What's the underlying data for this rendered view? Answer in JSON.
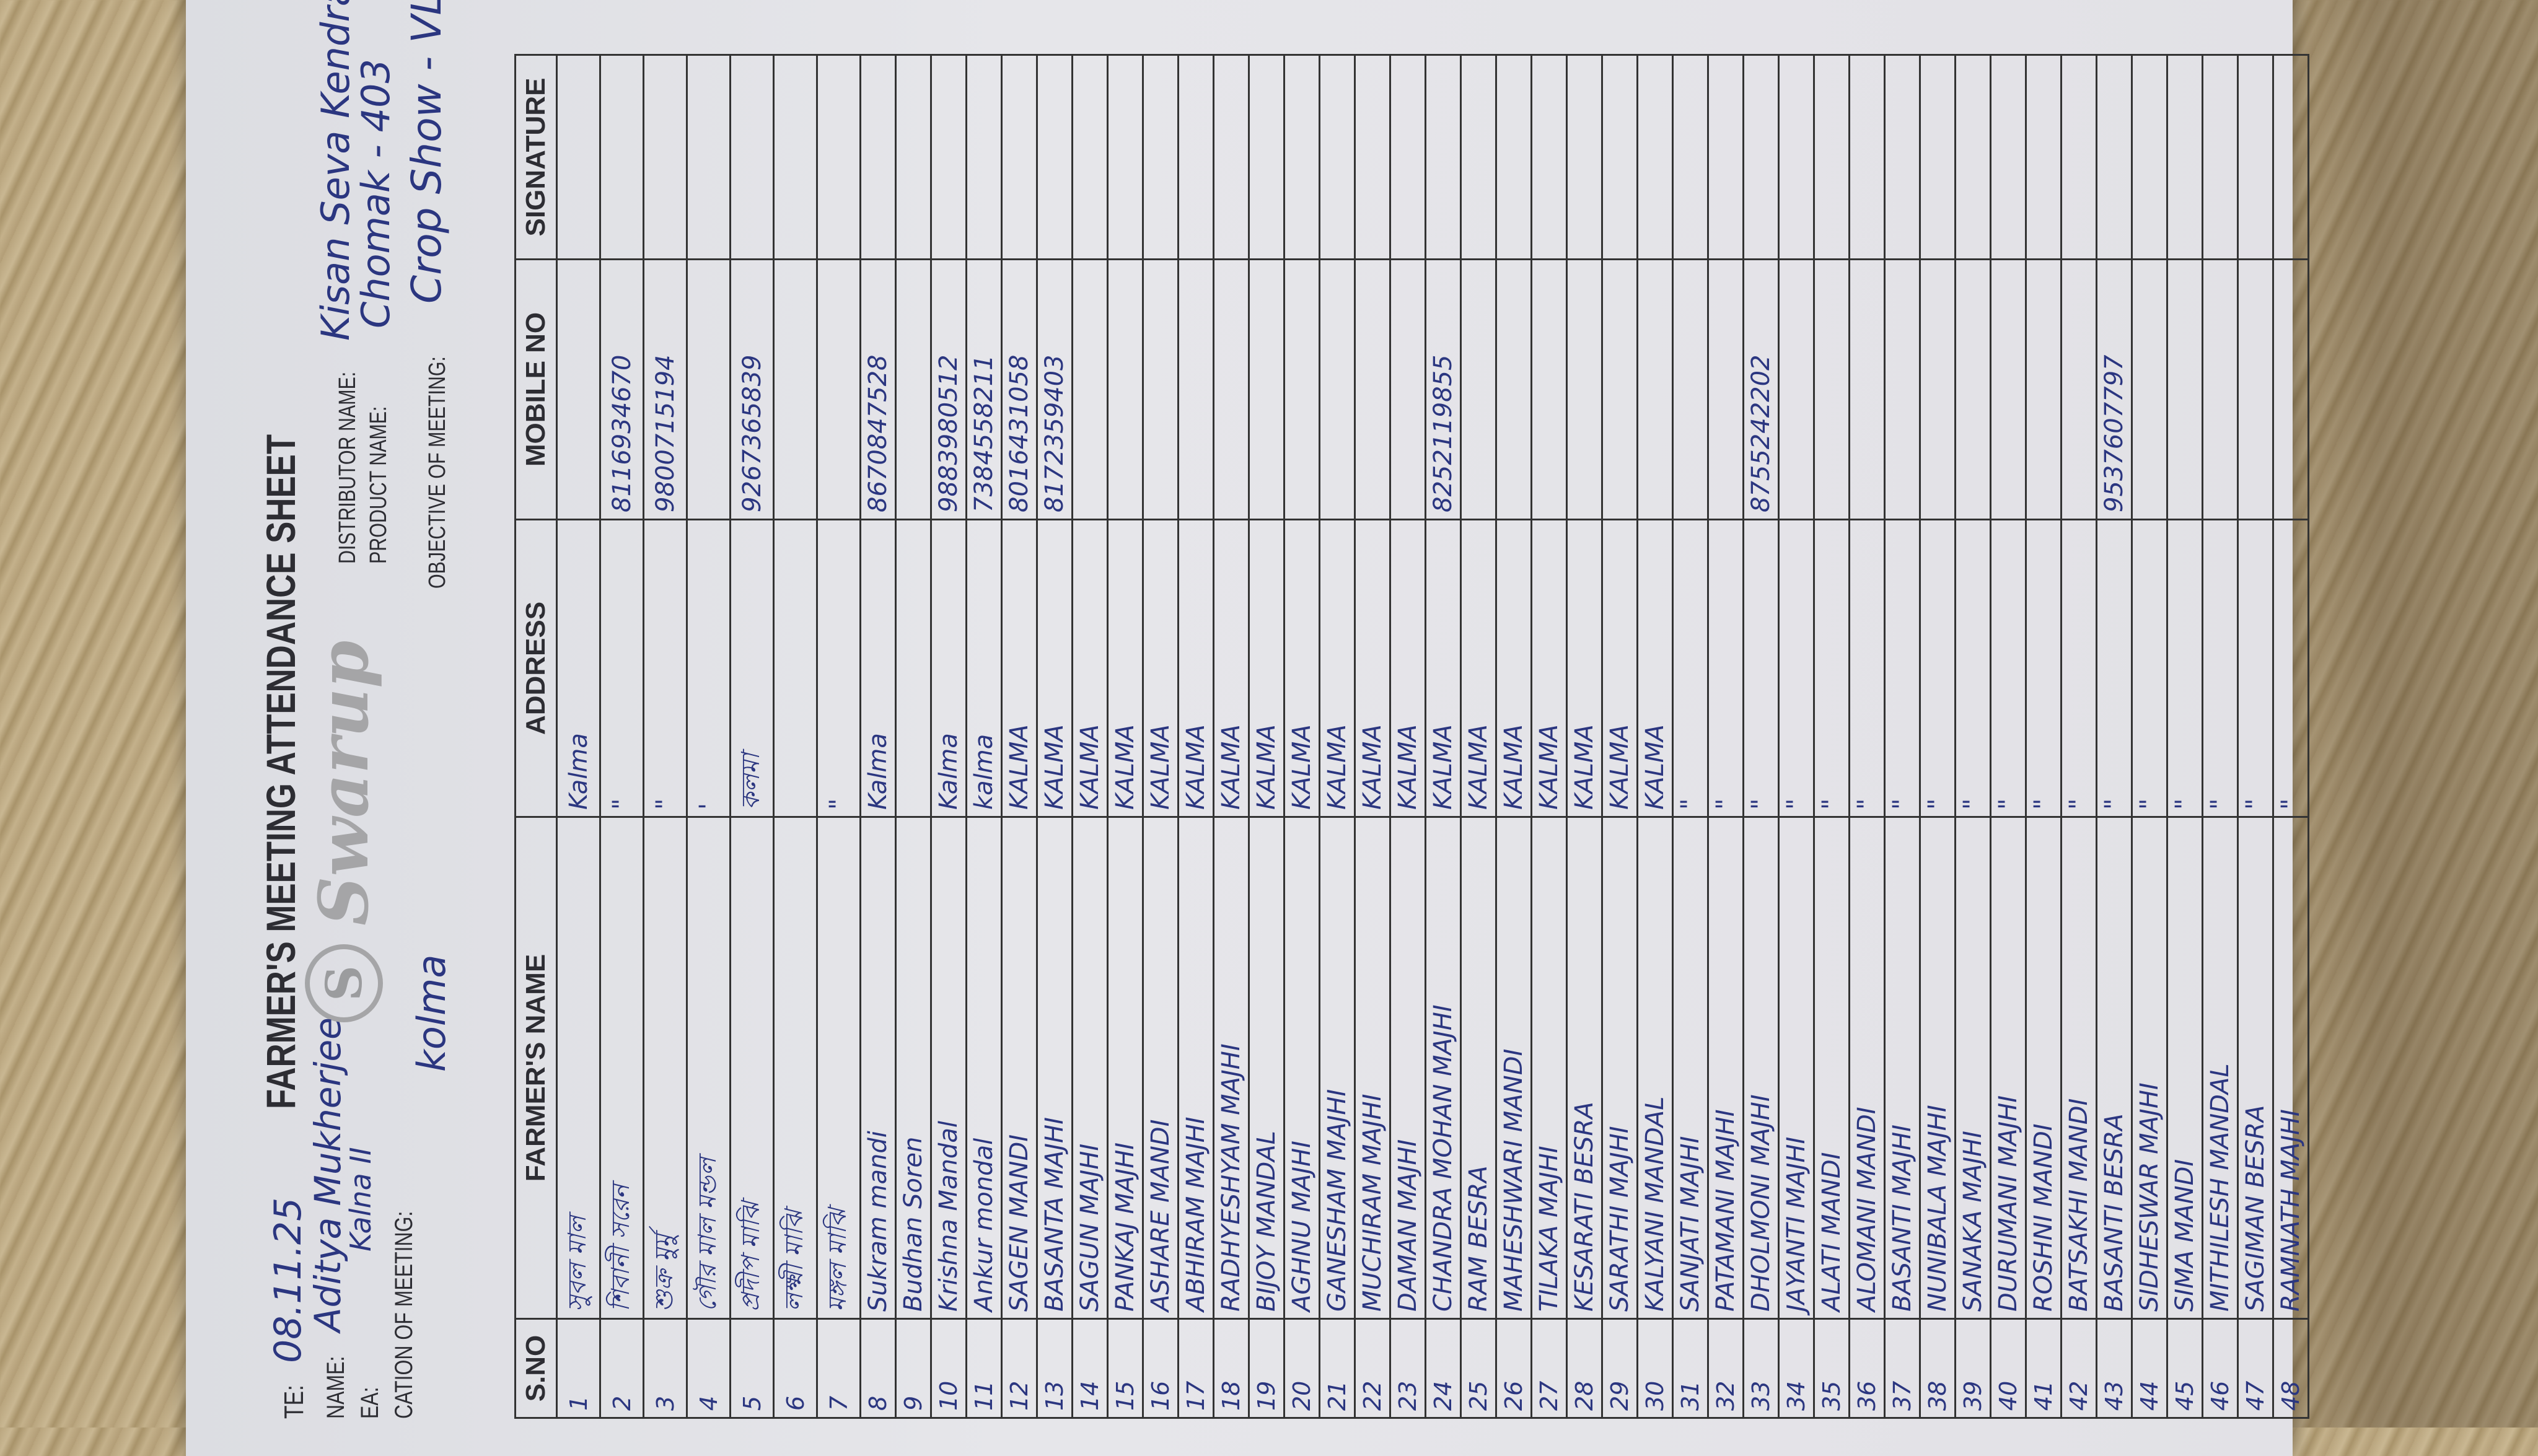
{
  "sheet": {
    "title": "FARMER'S MEETING ATTENDANCE SHEET",
    "logo_text": "Swarup",
    "logo_mark": "S",
    "fields": {
      "date_label": "TE:",
      "date_value": "08.11.25",
      "name_label": "NAME:",
      "name_value": "Aditya Mukherjee",
      "area_label": "EA:",
      "area_value": "Kalna II",
      "location_label": "CATION OF MEETING:",
      "location_value": "kolma",
      "distributor_label": "DISTRIBUTOR NAME:",
      "distributor_value": "Kisan Seva Kendra",
      "product_label": "PRODUCT NAME:",
      "product_value": "Chomak - 403",
      "objective_label": "OBJECTIVE OF MEETING:",
      "objective_value": "Crop Show - VLW"
    },
    "columns": [
      "S.NO",
      "FARMER'S NAME",
      "ADDRESS",
      "MOBILE NO",
      "SIGNATURE"
    ],
    "rows": [
      {
        "no": "1",
        "name": "সুবল মাল",
        "address": "Kalma",
        "mobile": ""
      },
      {
        "no": "2",
        "name": "শিবানী সরেন",
        "address": "\"",
        "mobile": "8116934670"
      },
      {
        "no": "3",
        "name": "শুক্র মুর্মু",
        "address": "\"",
        "mobile": "9800715194"
      },
      {
        "no": "4",
        "name": "গৌর মাল মন্ডল",
        "address": "'",
        "mobile": ""
      },
      {
        "no": "5",
        "name": "প্রদীপ মাঝি",
        "address": "কলমা",
        "mobile": "9267365839"
      },
      {
        "no": "6",
        "name": "লক্ষ্মী মাঝি",
        "address": "",
        "mobile": ""
      },
      {
        "no": "7",
        "name": "মঙ্গল মাঝি",
        "address": "\"",
        "mobile": ""
      },
      {
        "no": "8",
        "name": "Sukram mandi",
        "address": "Kalma",
        "mobile": "8670847528"
      },
      {
        "no": "9",
        "name": "Budhan Soren",
        "address": "",
        "mobile": ""
      },
      {
        "no": "10",
        "name": "Krishna Mandal",
        "address": "Kalma",
        "mobile": "9883980512"
      },
      {
        "no": "11",
        "name": "Ankur mondal",
        "address": "kalma",
        "mobile": "7384558211"
      },
      {
        "no": "12",
        "name": "SAGEN MANDI",
        "address": "KALMA",
        "mobile": "8016431058"
      },
      {
        "no": "13",
        "name": "BASANTA MAJHI",
        "address": "KALMA",
        "mobile": "8172359403"
      },
      {
        "no": "14",
        "name": "SAGUN MAJHI",
        "address": "KALMA",
        "mobile": ""
      },
      {
        "no": "15",
        "name": "PANKAJ MAJHI",
        "address": "KALMA",
        "mobile": ""
      },
      {
        "no": "16",
        "name": "ASHARE MANDI",
        "address": "KALMA",
        "mobile": ""
      },
      {
        "no": "17",
        "name": "ABHIRAM MAJHI",
        "address": "KALMA",
        "mobile": ""
      },
      {
        "no": "18",
        "name": "RADHYESHYAM MAJHI",
        "address": "KALMA",
        "mobile": ""
      },
      {
        "no": "19",
        "name": "BIJOY MANDAL",
        "address": "KALMA",
        "mobile": ""
      },
      {
        "no": "20",
        "name": "AGHNU MAJHI",
        "address": "KALMA",
        "mobile": ""
      },
      {
        "no": "21",
        "name": "GANESHAM MAJHI",
        "address": "KALMA",
        "mobile": ""
      },
      {
        "no": "22",
        "name": "MUCHIRAM MAJHI",
        "address": "KALMA",
        "mobile": ""
      },
      {
        "no": "23",
        "name": "DAMAN MAJHI",
        "address": "KALMA",
        "mobile": ""
      },
      {
        "no": "24",
        "name": "CHANDRA MOHAN MAJHI",
        "address": "KALMA",
        "mobile": "8252119855"
      },
      {
        "no": "25",
        "name": "RAM BESRA",
        "address": "KALMA",
        "mobile": ""
      },
      {
        "no": "26",
        "name": "MAHESHWARI MANDI",
        "address": "KALMA",
        "mobile": ""
      },
      {
        "no": "27",
        "name": "TILAKA MAJHI",
        "address": "KALMA",
        "mobile": ""
      },
      {
        "no": "28",
        "name": "KESARATI BESRA",
        "address": "KALMA",
        "mobile": ""
      },
      {
        "no": "29",
        "name": "SARATHI MAJHI",
        "address": "KALMA",
        "mobile": ""
      },
      {
        "no": "30",
        "name": "KALYANI MANDAL",
        "address": "KALMA",
        "mobile": ""
      },
      {
        "no": "31",
        "name": "SANJATI MAJHI",
        "address": "\"",
        "mobile": ""
      },
      {
        "no": "32",
        "name": "PATAMANI MAJHI",
        "address": "\"",
        "mobile": ""
      },
      {
        "no": "33",
        "name": "DHOLMONI MAJHI",
        "address": "\"",
        "mobile": "8755242202"
      },
      {
        "no": "34",
        "name": "JAYANTI MAJHI",
        "address": "\"",
        "mobile": ""
      },
      {
        "no": "35",
        "name": "ALATI MANDI",
        "address": "\"",
        "mobile": ""
      },
      {
        "no": "36",
        "name": "ALOMANI MANDI",
        "address": "\"",
        "mobile": ""
      },
      {
        "no": "37",
        "name": "BASANTI MAJHI",
        "address": "\"",
        "mobile": ""
      },
      {
        "no": "38",
        "name": "NUNIBALA MAJHI",
        "address": "\"",
        "mobile": ""
      },
      {
        "no": "39",
        "name": "SANAKA MAJHI",
        "address": "\"",
        "mobile": ""
      },
      {
        "no": "40",
        "name": "DURUMANI MAJHI",
        "address": "\"",
        "mobile": ""
      },
      {
        "no": "41",
        "name": "ROSHNI MANDI",
        "address": "\"",
        "mobile": ""
      },
      {
        "no": "42",
        "name": "BATSAKHI MANDI",
        "address": "\"",
        "mobile": ""
      },
      {
        "no": "43",
        "name": "BASANTI BESRA",
        "address": "\"",
        "mobile": "9537607797"
      },
      {
        "no": "44",
        "name": "SIDHESWAR MAJHI",
        "address": "\"",
        "mobile": ""
      },
      {
        "no": "45",
        "name": "SIMA MANDI",
        "address": "\"",
        "mobile": ""
      },
      {
        "no": "46",
        "name": "MITHILESH MANDAL",
        "address": "\"",
        "mobile": ""
      },
      {
        "no": "47",
        "name": "SAGIMAN BESRA",
        "address": "\"",
        "mobile": ""
      },
      {
        "no": "48",
        "name": "RAMNATH MAJHI",
        "address": "\"",
        "mobile": ""
      }
    ]
  }
}
